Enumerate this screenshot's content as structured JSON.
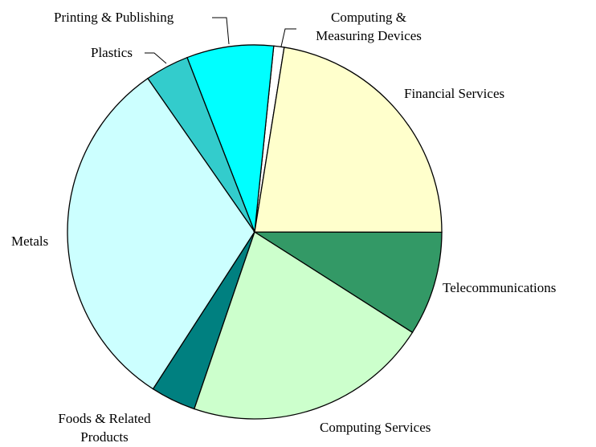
{
  "chart_data": {
    "type": "pie",
    "categories": [
      "Financial Services",
      "Telecommunications",
      "Computing Services",
      "Foods & Related Products",
      "Metals",
      "Plastics",
      "Printing & Publishing",
      "Computing & Measuring Devices"
    ],
    "values": [
      22.5,
      9.0,
      21.2,
      3.9,
      31.2,
      3.8,
      7.5,
      0.9
    ],
    "colors": [
      "#ffffcc",
      "#339966",
      "#ccffcc",
      "#008080",
      "#ccffff",
      "#33cccc",
      "#00ffff",
      "#ffffff"
    ]
  }
}
